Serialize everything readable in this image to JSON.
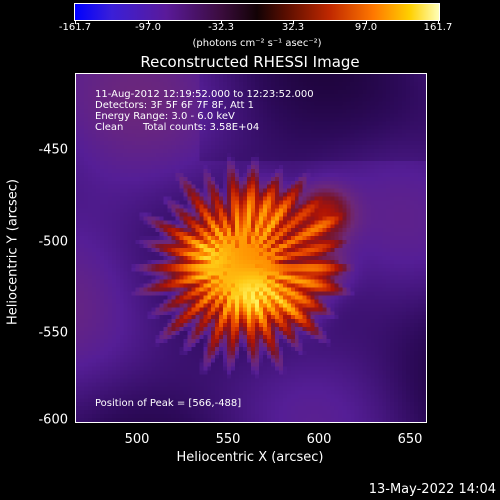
{
  "colorbar": {
    "ticks": [
      "-161.7",
      "-97.0",
      "-32.3",
      "32.3",
      "97.0",
      "161.7"
    ],
    "unit_label": "(photons cm⁻² s⁻¹ asec⁻²)"
  },
  "title": "Reconstructed RHESSI Image",
  "info": {
    "time_range": "11-Aug-2012 12:19:52.000 to 12:23:52.000",
    "detectors": "Detectors: 3F 5F 6F 7F 8F, Att 1",
    "energy_range": "Energy Range: 3.0 - 6.0 keV",
    "algorithm": "Clean",
    "total_counts": "Total counts: 3.58E+04",
    "peak_position": "Position of Peak = [566,-488]"
  },
  "axes": {
    "xlabel": "Heliocentric X (arcsec)",
    "ylabel": "Heliocentric Y (arcsec)",
    "xticks": [
      "500",
      "550",
      "600",
      "650"
    ],
    "yticks": [
      "-450",
      "-500",
      "-550",
      "-600"
    ]
  },
  "footer": {
    "date": "13-May-2022 14:04"
  },
  "chart_data": {
    "type": "heatmap",
    "title": "Reconstructed RHESSI Image",
    "xlabel": "Heliocentric X (arcsec)",
    "ylabel": "Heliocentric Y (arcsec)",
    "xlim": [
      467,
      659
    ],
    "ylim": [
      -604,
      -413
    ],
    "colorbar_range": [
      -161.7,
      161.7
    ],
    "peak": [
      566,
      -488
    ],
    "colormap": "blue-purple-black-red-orange-yellow-white"
  }
}
